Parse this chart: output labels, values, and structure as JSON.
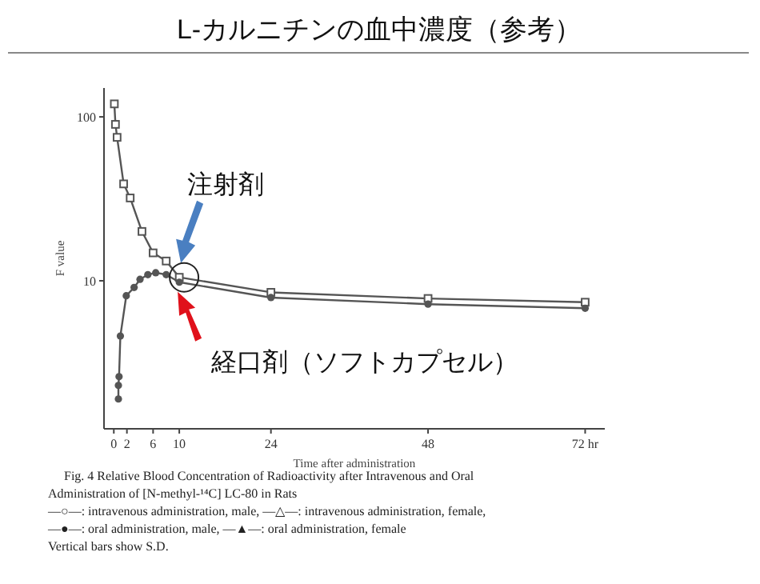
{
  "chart_data": {
    "type": "line",
    "title": "L-カルニチンの血中濃度（参考）",
    "xlabel": "Time after administration",
    "ylabel": "F value",
    "log": "y",
    "xlim": [
      -1.5,
      75
    ],
    "ylim": [
      1.25,
      150
    ],
    "xticks": [
      0,
      2,
      6,
      10,
      24,
      48,
      {
        "value": 72,
        "label": "72 hr"
      }
    ],
    "yticks": [
      10,
      100
    ],
    "grid": false,
    "line_style": "solid",
    "series": [
      {
        "marker": "square",
        "color": "#555555",
        "x": [
          0.08,
          0.25,
          0.5,
          1.5,
          2.5,
          4.3,
          6,
          8,
          10,
          24,
          48,
          72
        ],
        "values": [
          120,
          90,
          75,
          39,
          32,
          20,
          14.8,
          13.2,
          10.5,
          8.5,
          7.8,
          7.4
        ]
      },
      {
        "marker": "circle",
        "color": "#555555",
        "x": [
          0.7,
          0.7,
          0.8,
          1,
          1.9,
          3.1,
          4,
          5.2,
          6.4,
          8,
          10,
          24,
          48,
          72
        ],
        "values": [
          1.9,
          2.3,
          2.6,
          4.6,
          8.1,
          9.1,
          10.2,
          10.9,
          11.2,
          10.9,
          9.8,
          7.9,
          7.2,
          6.8
        ]
      }
    ],
    "annotations": [
      "注射剤",
      "経口剤（ソフトカプセル）",
      "Fig. 4  Relative Blood Concentration of Radioactivity after Intravenous and Oral",
      "Administration of [N-methyl-¹⁴C] LC-80 in Rats",
      "—○—: intravenous administration, male,  —△—: intravenous administration, female,",
      "—●—: oral administration, male,  —▲—: oral administration, female",
      "Vertical bars show S.D."
    ]
  }
}
